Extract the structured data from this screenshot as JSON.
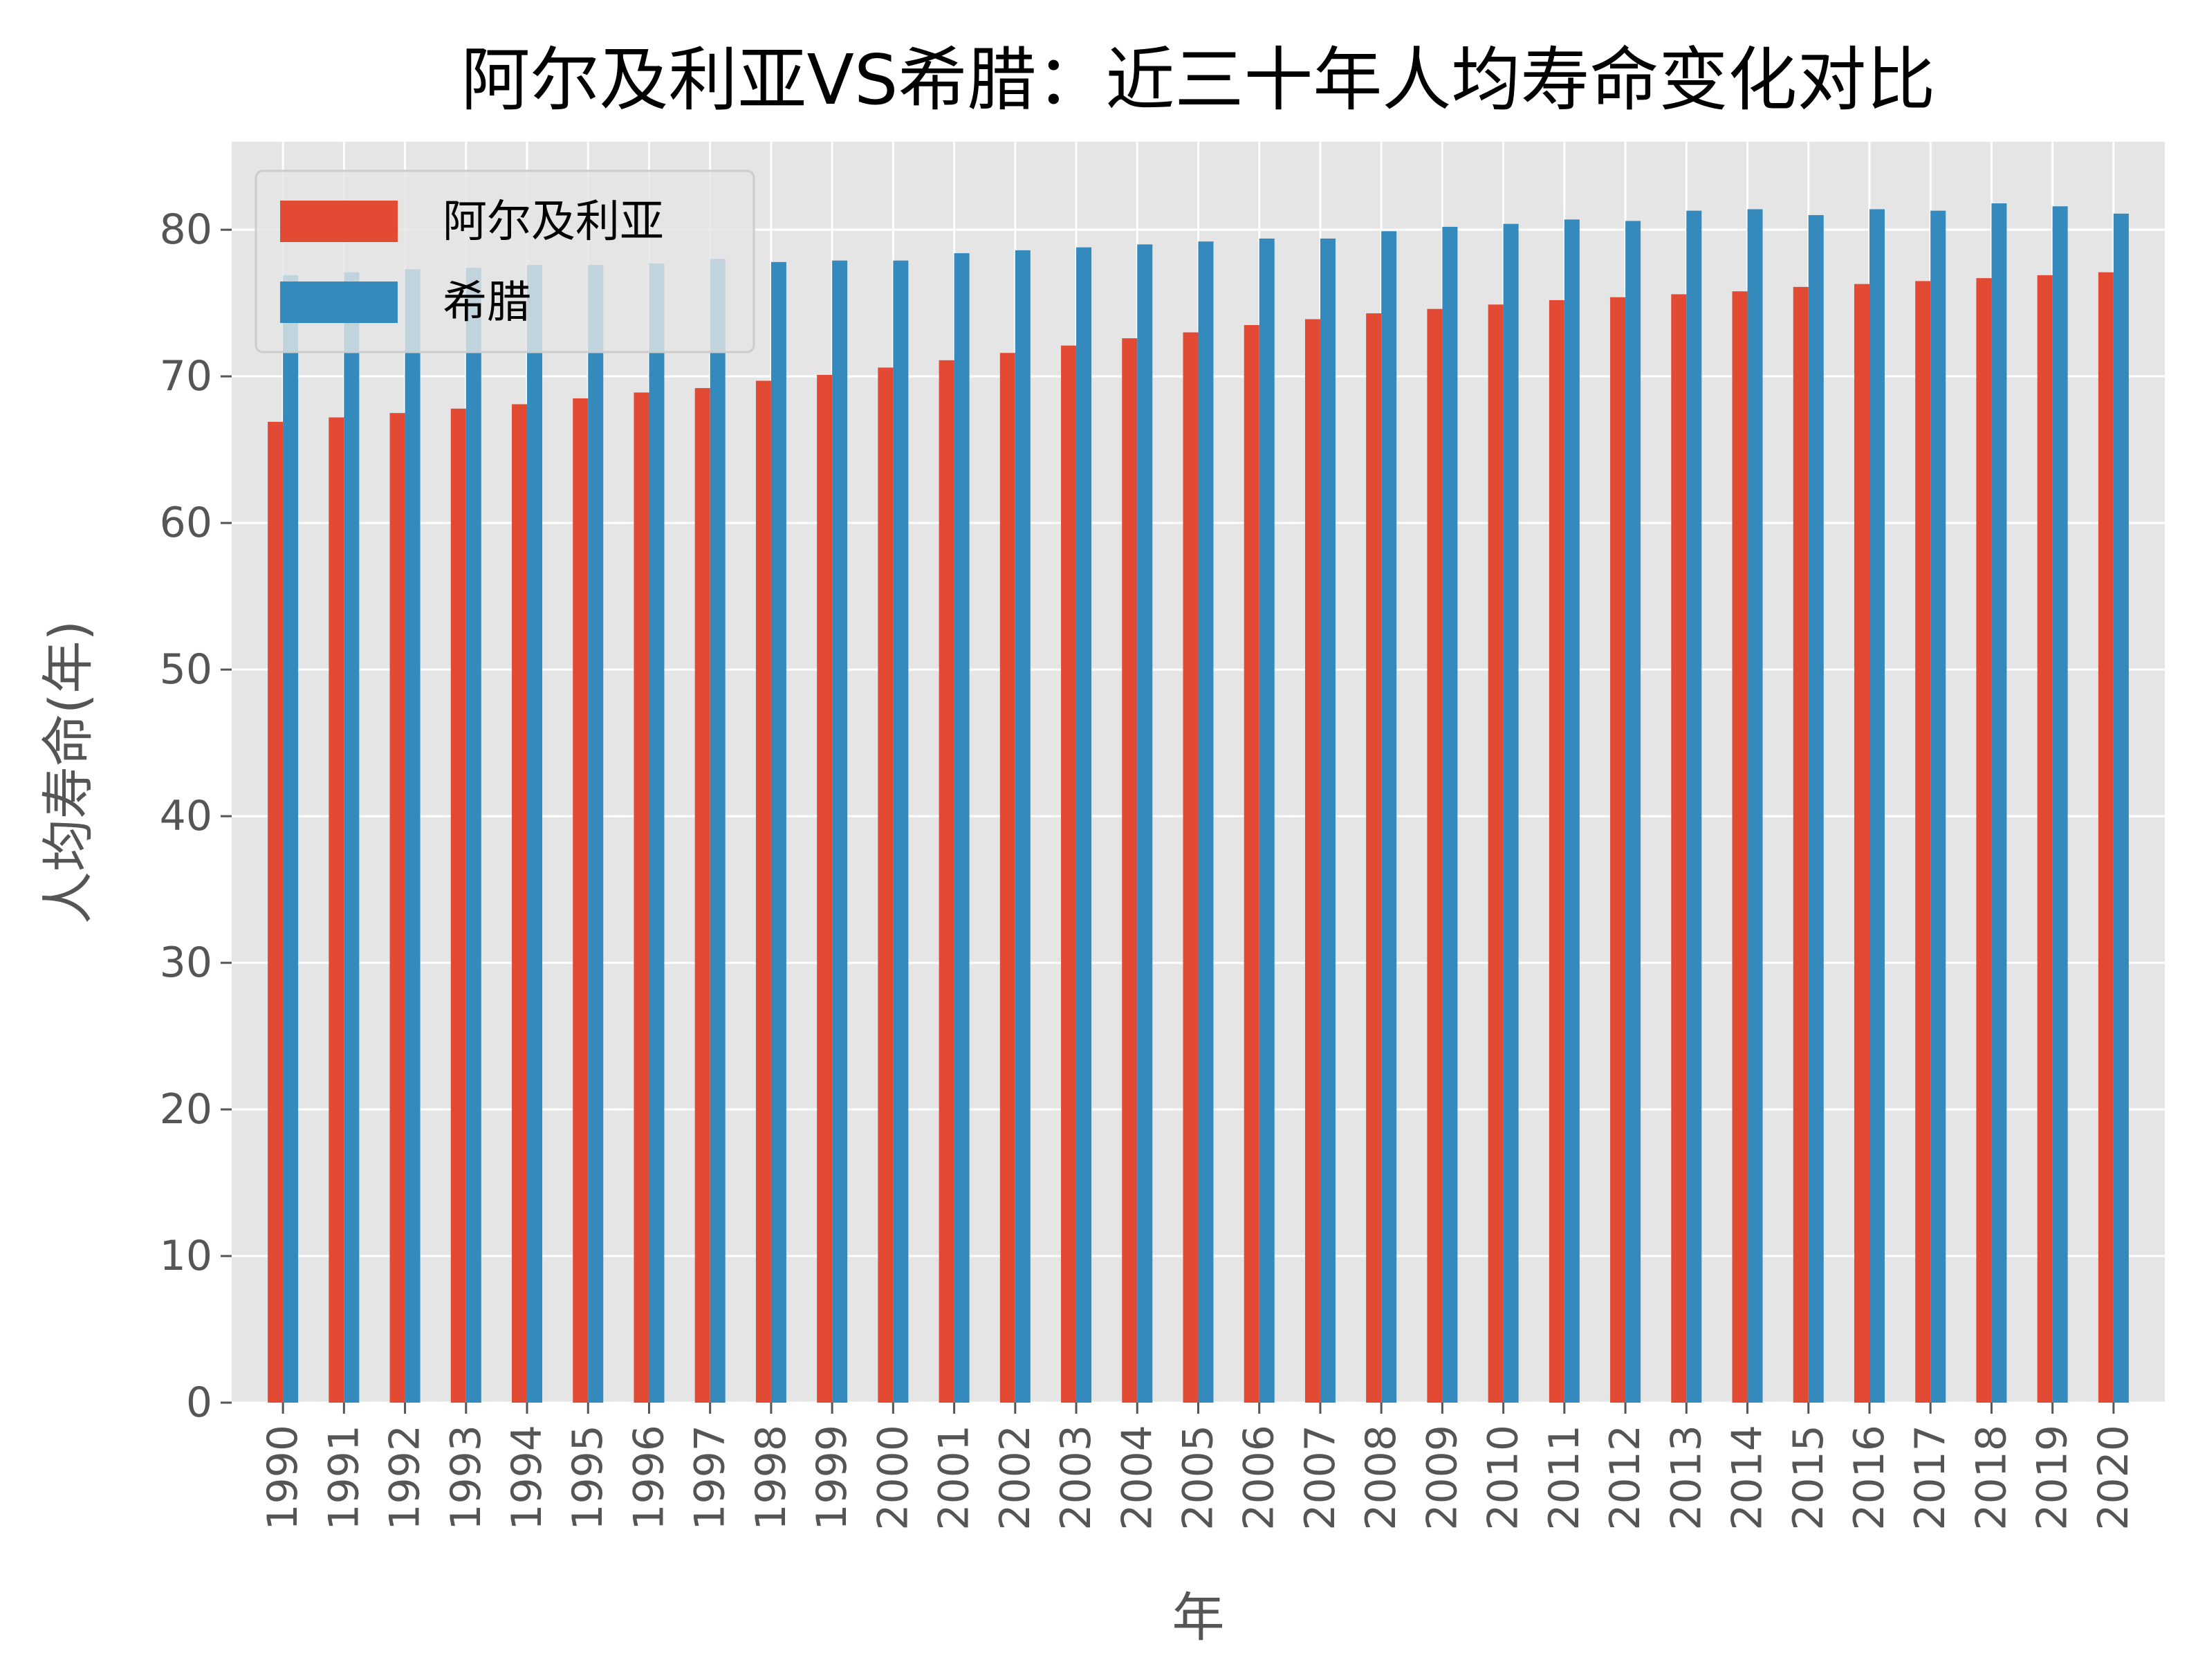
{
  "chart_data": {
    "type": "bar",
    "title": "阿尔及利亚VS希腊：近三十年人均寿命变化对比",
    "xlabel": "年",
    "ylabel": "人均寿命(年)",
    "ylim": [
      0,
      86
    ],
    "yticks": [
      "0",
      "10",
      "20",
      "30",
      "40",
      "50",
      "60",
      "70",
      "80"
    ],
    "grid": true,
    "legend_position": "top-left",
    "categories": [
      "1990",
      "1991",
      "1992",
      "1993",
      "1994",
      "1995",
      "1996",
      "1997",
      "1998",
      "1999",
      "2000",
      "2001",
      "2002",
      "2003",
      "2004",
      "2005",
      "2006",
      "2007",
      "2008",
      "2009",
      "2010",
      "2011",
      "2012",
      "2013",
      "2014",
      "2015",
      "2016",
      "2017",
      "2018",
      "2019",
      "2020"
    ],
    "series": [
      {
        "name": "阿尔及利亚",
        "color": "#E24A33",
        "values": [
          66.9,
          67.2,
          67.5,
          67.8,
          68.1,
          68.5,
          68.9,
          69.2,
          69.7,
          70.1,
          70.6,
          71.1,
          71.6,
          72.1,
          72.6,
          73.0,
          73.5,
          73.9,
          74.3,
          74.6,
          74.9,
          75.2,
          75.4,
          75.6,
          75.8,
          76.1,
          76.3,
          76.5,
          76.7,
          76.9,
          77.1
        ]
      },
      {
        "name": "希腊",
        "color": "#348ABD",
        "values": [
          76.9,
          77.1,
          77.3,
          77.4,
          77.6,
          77.6,
          77.7,
          78.0,
          77.8,
          77.9,
          77.9,
          78.4,
          78.6,
          78.8,
          79.0,
          79.2,
          79.4,
          79.4,
          79.9,
          80.2,
          80.4,
          80.7,
          80.6,
          81.3,
          81.4,
          81.0,
          81.4,
          81.3,
          81.8,
          81.6,
          81.1
        ]
      }
    ]
  }
}
